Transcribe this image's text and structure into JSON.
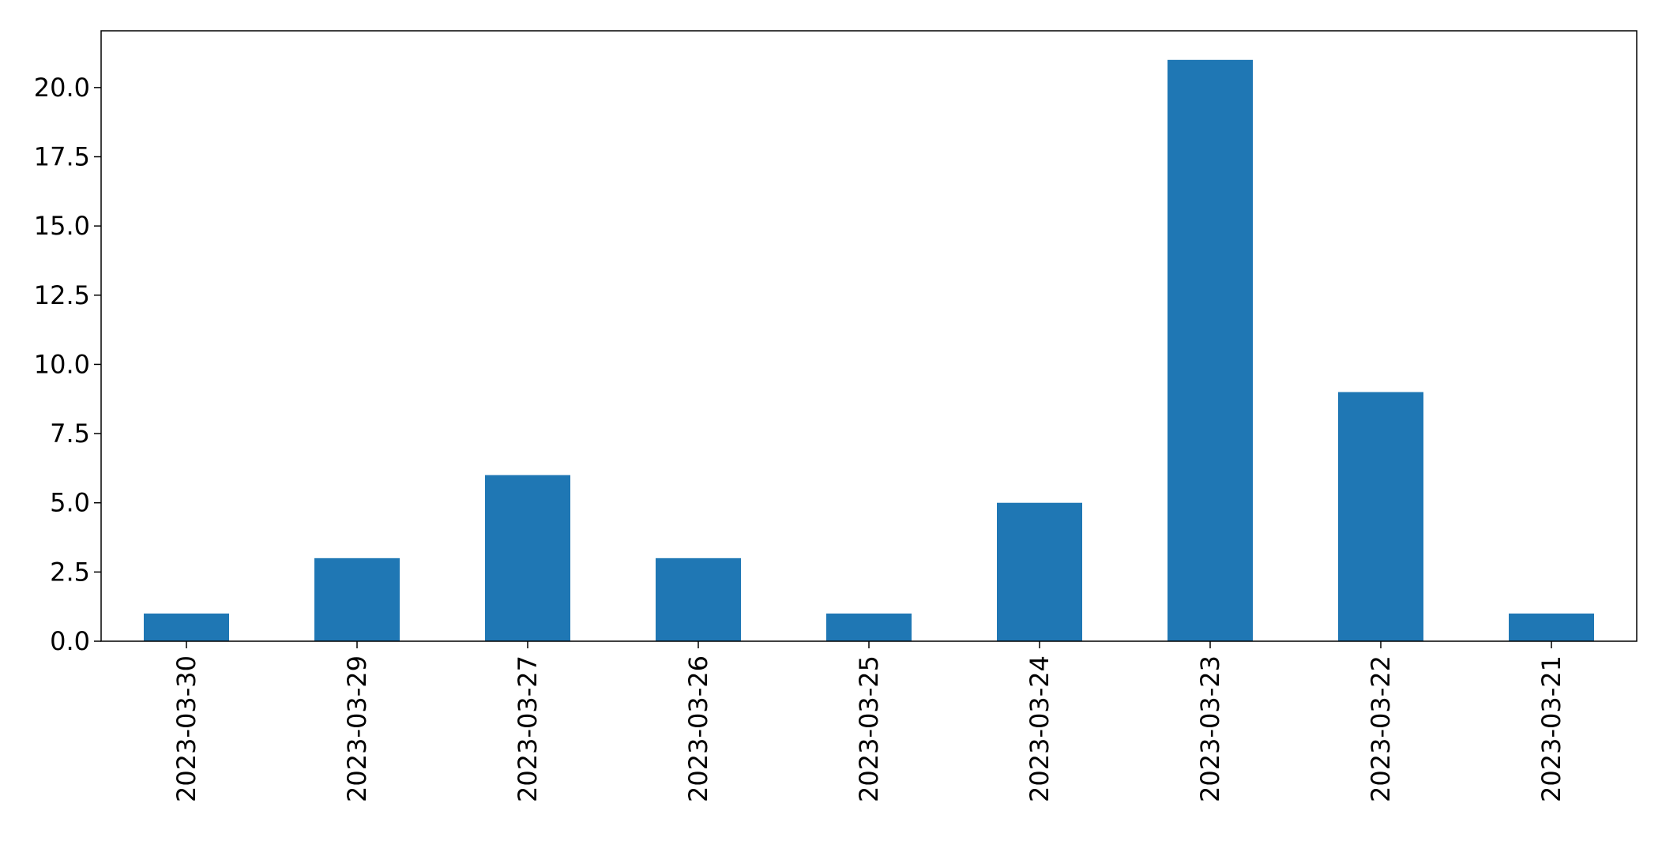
{
  "chart_data": {
    "type": "bar",
    "title": "",
    "xlabel": "",
    "ylabel": "",
    "categories": [
      "2023-03-30",
      "2023-03-29",
      "2023-03-27",
      "2023-03-26",
      "2023-03-25",
      "2023-03-24",
      "2023-03-23",
      "2023-03-22",
      "2023-03-21"
    ],
    "values": [
      1,
      3,
      6,
      3,
      1,
      5,
      21,
      9,
      1
    ],
    "ylim": [
      0,
      22.05
    ],
    "yticks": [
      0,
      2.5,
      5,
      7.5,
      10,
      12.5,
      15,
      17.5,
      20
    ],
    "ytick_labels": [
      "0.0",
      "2.5",
      "5.0",
      "7.5",
      "10.0",
      "12.5",
      "15.0",
      "17.5",
      "20.0"
    ],
    "grid": false,
    "legend": "none",
    "bar_color": "#1f77b4"
  }
}
